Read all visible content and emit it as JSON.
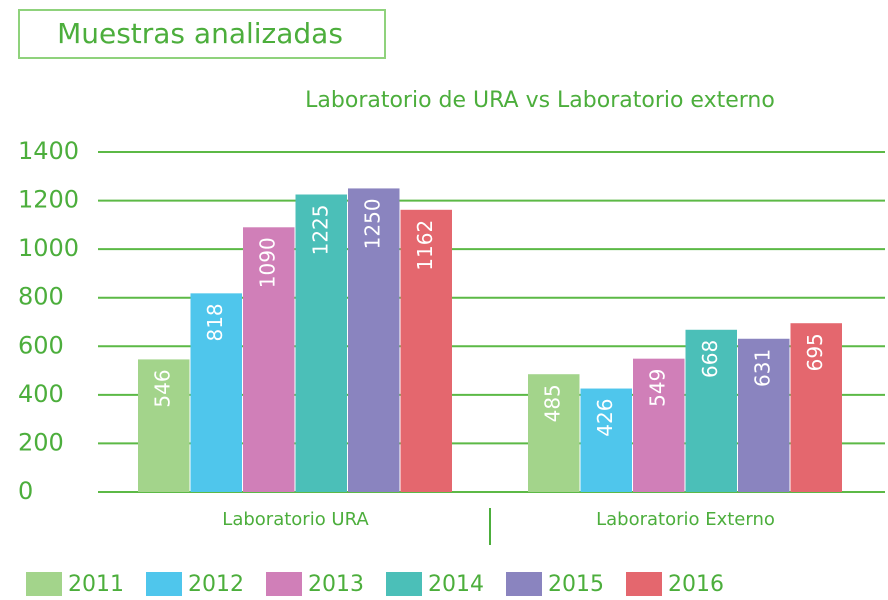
{
  "chart_data": {
    "type": "bar",
    "title": "Muestras analizadas",
    "subtitle": "Laboratorio de URA vs Laboratorio externo",
    "categories": [
      "Laboratorio URA",
      "Laboratorio Externo"
    ],
    "series": [
      {
        "name": "2011",
        "color": "#a3d48b",
        "values": [
          546,
          485
        ]
      },
      {
        "name": "2012",
        "color": "#4fc6ec",
        "values": [
          818,
          426
        ]
      },
      {
        "name": "2013",
        "color": "#d07fb8",
        "values": [
          1090,
          549
        ]
      },
      {
        "name": "2014",
        "color": "#4bbfb8",
        "values": [
          1225,
          668
        ]
      },
      {
        "name": "2015",
        "color": "#8a84bf",
        "values": [
          1250,
          631
        ]
      },
      {
        "name": "2016",
        "color": "#e4676e",
        "values": [
          1162,
          695
        ]
      }
    ],
    "ylim": [
      0,
      1400
    ],
    "yticks": [
      0,
      200,
      400,
      600,
      800,
      1000,
      1200,
      1400
    ],
    "grid": true,
    "legend": "bottom"
  }
}
